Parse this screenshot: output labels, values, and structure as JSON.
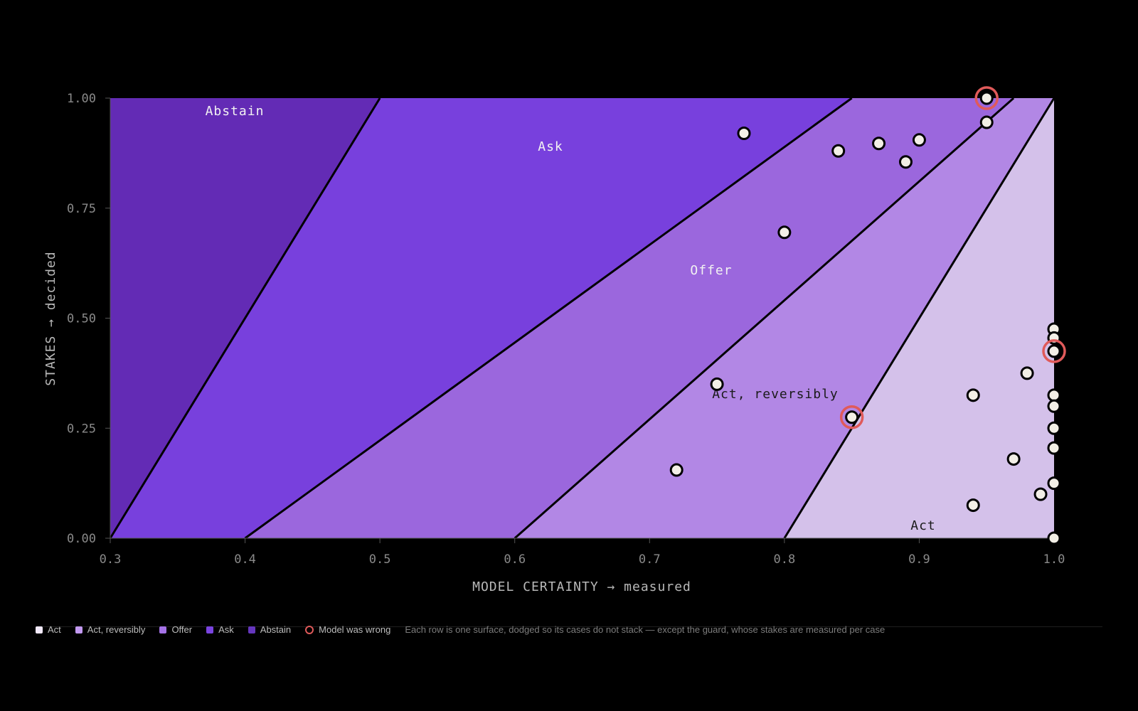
{
  "chart_data": {
    "type": "scatter",
    "xlabel": "MODEL CERTAINTY → measured",
    "ylabel": "STAKES → decided",
    "xlim": [
      0.3,
      1.0
    ],
    "ylim": [
      0.0,
      1.0
    ],
    "x_ticks": [
      "0.3",
      "0.4",
      "0.5",
      "0.6",
      "0.7",
      "0.8",
      "0.9",
      "1.0"
    ],
    "y_ticks": [
      "0.00",
      "0.25",
      "0.50",
      "0.75",
      "1.00"
    ],
    "grid": false,
    "regions": [
      {
        "name": "Abstain",
        "color": "#632bb5",
        "label_text_color": "#f2f2f2"
      },
      {
        "name": "Ask",
        "color": "#7840dd",
        "label_text_color": "#f2f2f2"
      },
      {
        "name": "Offer",
        "color": "#9b67dd",
        "label_text_color": "#f2f2f2"
      },
      {
        "name": "Act, reversibly",
        "color": "#b287e5",
        "label_text_color": "#1a1a1a"
      },
      {
        "name": "Act",
        "color": "#d4c1ea",
        "label_text_color": "#1a1a1a"
      }
    ],
    "boundaries": [
      {
        "bottom_x": 0.3,
        "top_x": 0.5
      },
      {
        "bottom_x": 0.4,
        "top_x": 0.85
      },
      {
        "bottom_x": 0.6,
        "top_x": 0.97
      },
      {
        "bottom_x": 0.8,
        "top_x": 1.0
      }
    ],
    "points": [
      {
        "x": 0.95,
        "y": 1.0,
        "wrong": true
      },
      {
        "x": 0.95,
        "y": 0.945,
        "wrong": false
      },
      {
        "x": 0.77,
        "y": 0.92,
        "wrong": false
      },
      {
        "x": 0.9,
        "y": 0.905,
        "wrong": false
      },
      {
        "x": 0.87,
        "y": 0.897,
        "wrong": false
      },
      {
        "x": 0.84,
        "y": 0.88,
        "wrong": false
      },
      {
        "x": 0.89,
        "y": 0.855,
        "wrong": false
      },
      {
        "x": 0.8,
        "y": 0.695,
        "wrong": false
      },
      {
        "x": 1.0,
        "y": 0.475,
        "wrong": false
      },
      {
        "x": 1.0,
        "y": 0.455,
        "wrong": false
      },
      {
        "x": 1.0,
        "y": 0.425,
        "wrong": true
      },
      {
        "x": 0.98,
        "y": 0.375,
        "wrong": false
      },
      {
        "x": 0.75,
        "y": 0.35,
        "wrong": false
      },
      {
        "x": 0.94,
        "y": 0.325,
        "wrong": false
      },
      {
        "x": 1.0,
        "y": 0.325,
        "wrong": false
      },
      {
        "x": 1.0,
        "y": 0.3,
        "wrong": false
      },
      {
        "x": 0.85,
        "y": 0.275,
        "wrong": true
      },
      {
        "x": 1.0,
        "y": 0.25,
        "wrong": false
      },
      {
        "x": 1.0,
        "y": 0.205,
        "wrong": false
      },
      {
        "x": 0.97,
        "y": 0.18,
        "wrong": false
      },
      {
        "x": 0.72,
        "y": 0.155,
        "wrong": false
      },
      {
        "x": 1.0,
        "y": 0.125,
        "wrong": false
      },
      {
        "x": 0.99,
        "y": 0.1,
        "wrong": false
      },
      {
        "x": 0.94,
        "y": 0.075,
        "wrong": false
      },
      {
        "x": 1.0,
        "y": 0.0,
        "wrong": false
      }
    ],
    "wrong_color": "#e05a5a",
    "point_fill": "#f3efe6"
  },
  "legend": {
    "items": [
      {
        "label": "Act",
        "color": "#f1e9fb"
      },
      {
        "label": "Act, reversibly",
        "color": "#c299f0"
      },
      {
        "label": "Offer",
        "color": "#a472e6"
      },
      {
        "label": "Ask",
        "color": "#7a44e0"
      },
      {
        "label": "Abstain",
        "color": "#6536bd"
      }
    ],
    "wrong_label": "Model was wrong",
    "note": "Each row is one surface, dodged so its cases do not stack — except the guard, whose stakes are measured per case"
  }
}
